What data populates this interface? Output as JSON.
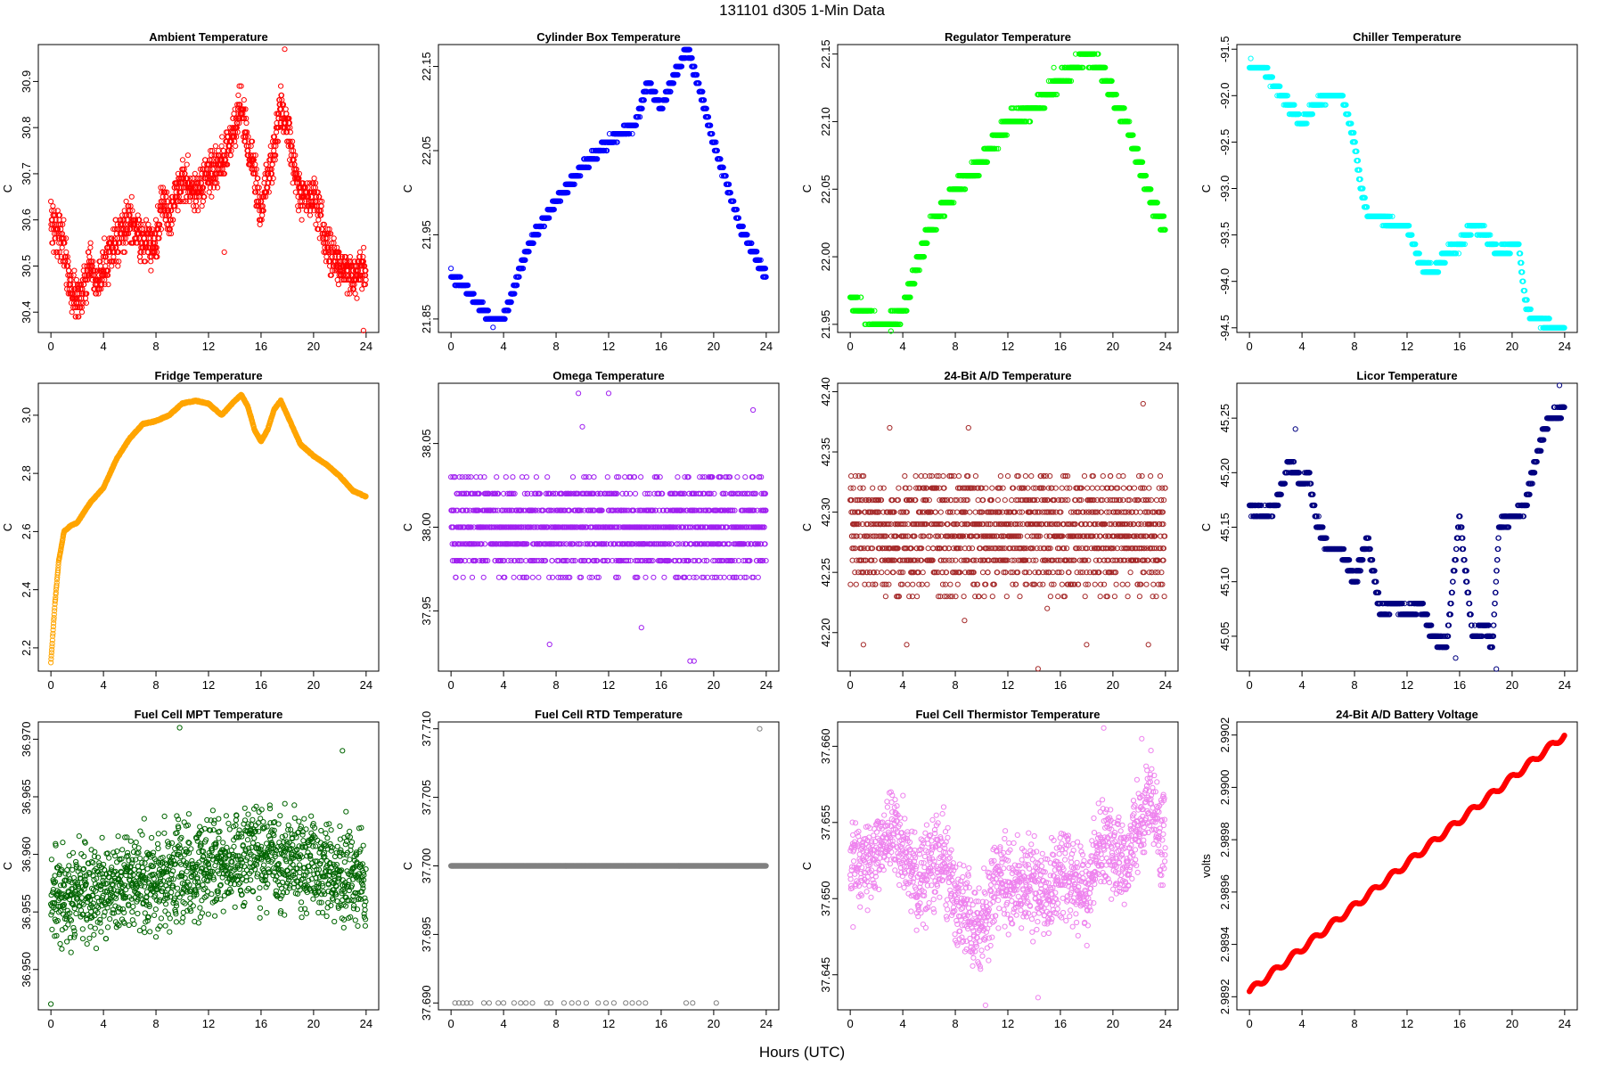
{
  "figure": {
    "title": "131101    d305    1-Min Data",
    "xlabel": "Hours (UTC)"
  },
  "chart_data": [
    {
      "id": "ambient",
      "type": "scatter",
      "title": "Ambient Temperature",
      "ylabel": "C",
      "color": "#ff0000",
      "xlim": [
        -0.96,
        24.96
      ],
      "ylim": [
        30.356,
        30.98
      ],
      "xticks": [
        0,
        4,
        8,
        12,
        16,
        20,
        24
      ],
      "yticks": [
        30.4,
        30.5,
        30.6,
        30.7,
        30.8,
        30.9
      ],
      "ytick_labels": [
        "30.4",
        "30.5",
        "30.6",
        "30.7",
        "30.8",
        "30.9"
      ],
      "gen": "noise",
      "noise": 0.04,
      "step": 0.01,
      "x": [
        0,
        1,
        1.5,
        2,
        2.5,
        3,
        3.5,
        4,
        5,
        6,
        7,
        8,
        8.5,
        9,
        10,
        11,
        12,
        13,
        14,
        14.5,
        15,
        15.5,
        16,
        17,
        17.5,
        18,
        19,
        20,
        21,
        22,
        23,
        24
      ],
      "y": [
        30.6,
        30.55,
        30.45,
        30.42,
        30.45,
        30.5,
        30.45,
        30.5,
        30.55,
        30.6,
        30.55,
        30.55,
        30.65,
        30.6,
        30.7,
        30.65,
        30.7,
        30.72,
        30.8,
        30.85,
        30.75,
        30.7,
        30.62,
        30.75,
        30.85,
        30.8,
        30.65,
        30.65,
        30.55,
        30.5,
        30.48,
        30.5
      ],
      "anomalies": [
        [
          23.8,
          30.36
        ],
        [
          17.8,
          30.97
        ],
        [
          13.2,
          30.53
        ]
      ]
    },
    {
      "id": "cylinder",
      "type": "scatter",
      "title": "Cylinder Box Temperature",
      "ylabel": "C",
      "color": "#0000ff",
      "xlim": [
        -0.96,
        24.96
      ],
      "ylim": [
        21.834,
        22.176
      ],
      "xticks": [
        0,
        4,
        8,
        12,
        16,
        20,
        24
      ],
      "yticks": [
        21.85,
        21.95,
        22.05,
        22.15
      ],
      "ytick_labels": [
        "21.85",
        "21.95",
        "22.05",
        "22.15"
      ],
      "gen": "step",
      "step": 0.01,
      "x": [
        0,
        1,
        2,
        3,
        4,
        6,
        8,
        10,
        12,
        14,
        15,
        16,
        17,
        18,
        19,
        20,
        21,
        22,
        23,
        24
      ],
      "y": [
        21.9,
        21.89,
        21.87,
        21.85,
        21.85,
        21.94,
        21.99,
        22.03,
        22.06,
        22.08,
        22.13,
        22.1,
        22.14,
        22.17,
        22.12,
        22.06,
        22.01,
        21.96,
        21.93,
        21.9
      ],
      "anomalies": [
        [
          3.2,
          21.84
        ],
        [
          0,
          21.91
        ]
      ]
    },
    {
      "id": "regulator",
      "type": "scatter",
      "title": "Regulator Temperature",
      "ylabel": "C",
      "color": "#00ff00",
      "xlim": [
        -0.96,
        24.96
      ],
      "ylim": [
        21.944,
        22.157
      ],
      "xticks": [
        0,
        4,
        8,
        12,
        16,
        20,
        24
      ],
      "yticks": [
        21.95,
        22.0,
        22.05,
        22.1,
        22.15
      ],
      "ytick_labels": [
        "21.95",
        "22.00",
        "22.05",
        "22.10",
        "22.15"
      ],
      "gen": "step",
      "step": 0.01,
      "x": [
        0,
        1,
        2,
        3,
        4,
        6,
        8,
        10,
        12,
        14,
        15,
        16,
        17,
        18,
        19,
        20,
        21,
        22,
        23,
        24
      ],
      "y": [
        21.97,
        21.96,
        21.95,
        21.95,
        21.96,
        22.02,
        22.05,
        22.07,
        22.1,
        22.11,
        22.12,
        22.13,
        22.14,
        22.15,
        22.14,
        22.12,
        22.1,
        22.07,
        22.04,
        22.02
      ],
      "anomalies": [
        [
          3.1,
          21.945
        ],
        [
          15.5,
          22.14
        ]
      ]
    },
    {
      "id": "chiller",
      "type": "scatter",
      "title": "Chiller Temperature",
      "ylabel": "C",
      "color": "#00ffff",
      "xlim": [
        -0.96,
        24.96
      ],
      "ylim": [
        -94.55,
        -91.45
      ],
      "xticks": [
        0,
        4,
        8,
        12,
        16,
        20,
        24
      ],
      "yticks": [
        -94.5,
        -94.0,
        -93.5,
        -93.0,
        -92.5,
        -92.0,
        -91.5
      ],
      "ytick_labels": [
        "-94.5",
        "-94.0",
        "-93.5",
        "-93.0",
        "-92.5",
        "-92.0",
        "-91.5"
      ],
      "gen": "step",
      "step": 0.1,
      "x": [
        0,
        1,
        2,
        3,
        4,
        5,
        6,
        7,
        8,
        8.5,
        9,
        10,
        11,
        12,
        13,
        14,
        15,
        16,
        17,
        18,
        19,
        20,
        20.5,
        21,
        21.5,
        22,
        23,
        24
      ],
      "y": [
        -91.7,
        -91.7,
        -91.9,
        -92.1,
        -92.3,
        -92.1,
        -92.0,
        -92.0,
        -92.5,
        -93.0,
        -93.3,
        -93.3,
        -93.4,
        -93.4,
        -93.8,
        -93.9,
        -93.7,
        -93.6,
        -93.4,
        -93.5,
        -93.7,
        -93.6,
        -93.6,
        -94.2,
        -94.4,
        -94.4,
        -94.5,
        -94.5
      ],
      "anomalies": [
        [
          0.1,
          -91.6
        ]
      ]
    },
    {
      "id": "fridge",
      "type": "scatter",
      "title": "Fridge Temperature",
      "ylabel": "C",
      "color": "#ffa500",
      "xlim": [
        -0.96,
        24.96
      ],
      "ylim": [
        2.12,
        3.11
      ],
      "xticks": [
        0,
        4,
        8,
        12,
        16,
        20,
        24
      ],
      "yticks": [
        2.2,
        2.4,
        2.6,
        2.8,
        3.0
      ],
      "ytick_labels": [
        "2.2",
        "2.4",
        "2.6",
        "2.8",
        "3.0"
      ],
      "gen": "smooth",
      "noise": 0.004,
      "x": [
        0,
        0.3,
        0.6,
        1,
        1.5,
        2,
        3,
        4,
        5,
        6,
        7,
        8,
        9,
        10,
        11,
        12,
        13,
        14,
        14.5,
        15,
        15.5,
        16,
        16.5,
        17,
        17.5,
        18,
        19,
        20,
        21,
        22,
        23,
        24
      ],
      "y": [
        2.15,
        2.35,
        2.5,
        2.6,
        2.62,
        2.63,
        2.7,
        2.75,
        2.85,
        2.92,
        2.97,
        2.98,
        3.0,
        3.04,
        3.05,
        3.04,
        3.0,
        3.05,
        3.07,
        3.03,
        2.95,
        2.91,
        2.95,
        3.02,
        3.05,
        3.0,
        2.9,
        2.86,
        2.83,
        2.79,
        2.74,
        2.72
      ]
    },
    {
      "id": "omega",
      "type": "scatter",
      "title": "Omega Temperature",
      "ylabel": "C",
      "color": "#a020f0",
      "xlim": [
        -0.96,
        24.96
      ],
      "ylim": [
        37.914,
        38.086
      ],
      "xticks": [
        0,
        4,
        8,
        12,
        16,
        20,
        24
      ],
      "yticks": [
        37.95,
        38.0,
        38.05
      ],
      "ytick_labels": [
        "37.95",
        "38.00",
        "38.05"
      ],
      "gen": "discrete",
      "levels": [
        37.97,
        37.98,
        37.99,
        38.0,
        38.01,
        38.02,
        38.03
      ],
      "weights": [
        1,
        3,
        5,
        6,
        5,
        3,
        1
      ],
      "x": [
        0,
        24
      ],
      "y": [
        38.0,
        38.0
      ],
      "anomalies": [
        [
          7.5,
          37.93
        ],
        [
          9.7,
          38.08
        ],
        [
          12,
          38.08
        ],
        [
          18.2,
          37.92
        ],
        [
          18.5,
          37.92
        ],
        [
          23,
          38.07
        ],
        [
          10,
          38.06
        ],
        [
          14.5,
          37.94
        ]
      ]
    },
    {
      "id": "adtemp",
      "type": "scatter",
      "title": "24-Bit A/D Temperature",
      "ylabel": "C",
      "color": "#a52a2a",
      "xlim": [
        -0.96,
        24.96
      ],
      "ylim": [
        42.168,
        42.407
      ],
      "xticks": [
        0,
        4,
        8,
        12,
        16,
        20,
        24
      ],
      "yticks": [
        42.2,
        42.25,
        42.3,
        42.35,
        42.4
      ],
      "ytick_labels": [
        "42.20",
        "42.25",
        "42.30",
        "42.35",
        "42.40"
      ],
      "gen": "discrete",
      "levels": [
        42.23,
        42.24,
        42.25,
        42.26,
        42.27,
        42.28,
        42.29,
        42.3,
        42.31,
        42.32,
        42.33
      ],
      "weights": [
        1,
        2,
        3,
        5,
        6,
        7,
        6,
        5,
        4,
        3,
        2
      ],
      "x": [
        0,
        24
      ],
      "y": [
        42.28,
        42.28
      ],
      "anomalies": [
        [
          14.3,
          42.17
        ],
        [
          22.3,
          42.39
        ],
        [
          8.7,
          42.21
        ],
        [
          1,
          42.19
        ],
        [
          4.3,
          42.19
        ],
        [
          18,
          42.19
        ],
        [
          22.7,
          42.19
        ],
        [
          15,
          42.22
        ],
        [
          3,
          42.37
        ],
        [
          9,
          42.37
        ]
      ]
    },
    {
      "id": "licor",
      "type": "scatter",
      "title": "Licor Temperature",
      "ylabel": "C",
      "color": "#000080",
      "xlim": [
        -0.96,
        24.96
      ],
      "ylim": [
        45.018,
        45.282
      ],
      "xticks": [
        0,
        4,
        8,
        12,
        16,
        20,
        24
      ],
      "yticks": [
        45.05,
        45.1,
        45.15,
        45.2,
        45.25
      ],
      "ytick_labels": [
        "45.05",
        "45.10",
        "45.15",
        "45.20",
        "45.25"
      ],
      "gen": "step",
      "step": 0.01,
      "x": [
        0,
        1,
        2,
        3,
        3.5,
        4,
        4.5,
        5,
        6,
        7,
        8,
        9,
        10,
        11,
        12,
        13,
        14,
        15,
        15.5,
        16,
        17,
        18,
        18.5,
        19,
        20,
        21,
        22,
        22.5,
        23,
        24
      ],
      "y": [
        45.17,
        45.16,
        45.17,
        45.21,
        45.2,
        45.19,
        45.2,
        45.16,
        45.13,
        45.13,
        45.1,
        45.14,
        45.07,
        45.08,
        45.07,
        45.08,
        45.05,
        45.04,
        45.1,
        45.16,
        45.05,
        45.06,
        45.04,
        45.15,
        45.16,
        45.17,
        45.22,
        45.24,
        45.25,
        45.26
      ],
      "anomalies": [
        [
          18.8,
          45.02
        ],
        [
          23.6,
          45.28
        ],
        [
          3.5,
          45.24
        ],
        [
          15.7,
          45.03
        ]
      ]
    },
    {
      "id": "fcmpt",
      "type": "scatter",
      "title": "Fuel Cell MPT Temperature",
      "ylabel": "C",
      "color": "#006400",
      "xlim": [
        -0.96,
        24.96
      ],
      "ylim": [
        36.9465,
        36.9715
      ],
      "xticks": [
        0,
        4,
        8,
        12,
        16,
        20,
        24
      ],
      "yticks": [
        36.95,
        36.955,
        36.96,
        36.965,
        36.97
      ],
      "ytick_labels": [
        "36.950",
        "36.955",
        "36.960",
        "36.965",
        "36.970"
      ],
      "gen": "noise",
      "noise": 0.0035,
      "step": 0,
      "x": [
        0,
        4,
        8,
        12,
        16,
        20,
        24
      ],
      "y": [
        36.956,
        36.957,
        36.958,
        36.959,
        36.96,
        36.959,
        36.958
      ],
      "anomalies": [
        [
          0,
          36.947
        ],
        [
          9.8,
          36.971
        ],
        [
          22.2,
          36.969
        ]
      ]
    },
    {
      "id": "fcrtd",
      "type": "scatter",
      "title": "Fuel Cell RTD Temperature",
      "ylabel": "C",
      "color": "#808080",
      "xlim": [
        -0.96,
        24.96
      ],
      "ylim": [
        37.6895,
        37.7105
      ],
      "xticks": [
        0,
        4,
        8,
        12,
        16,
        20,
        24
      ],
      "yticks": [
        37.69,
        37.695,
        37.7,
        37.705,
        37.71
      ],
      "ytick_labels": [
        "37.690",
        "37.695",
        "37.700",
        "37.705",
        "37.710"
      ],
      "gen": "flat",
      "x": [
        0,
        24
      ],
      "y": [
        37.7,
        37.7
      ],
      "anomalies": [
        [
          0.3,
          37.69
        ],
        [
          0.6,
          37.69
        ],
        [
          0.9,
          37.69
        ],
        [
          1.2,
          37.69
        ],
        [
          1.5,
          37.69
        ],
        [
          2.5,
          37.69
        ],
        [
          2.9,
          37.69
        ],
        [
          3.6,
          37.69
        ],
        [
          4,
          37.69
        ],
        [
          4.8,
          37.69
        ],
        [
          5.3,
          37.69
        ],
        [
          5.7,
          37.69
        ],
        [
          6.2,
          37.69
        ],
        [
          7.3,
          37.69
        ],
        [
          7.6,
          37.69
        ],
        [
          8.6,
          37.69
        ],
        [
          9.2,
          37.69
        ],
        [
          9.7,
          37.69
        ],
        [
          10.3,
          37.69
        ],
        [
          11.2,
          37.69
        ],
        [
          11.8,
          37.69
        ],
        [
          12.4,
          37.69
        ],
        [
          13.3,
          37.69
        ],
        [
          13.8,
          37.69
        ],
        [
          14.3,
          37.69
        ],
        [
          14.8,
          37.69
        ],
        [
          17.9,
          37.69
        ],
        [
          18.4,
          37.69
        ],
        [
          20.2,
          37.69
        ],
        [
          23.5,
          37.71
        ]
      ]
    },
    {
      "id": "fcthermistor",
      "type": "scatter",
      "title": "Fuel Cell Thermistor Temperature",
      "ylabel": "C",
      "color": "#ee82ee",
      "xlim": [
        -0.96,
        24.96
      ],
      "ylim": [
        37.6427,
        37.6616
      ],
      "xticks": [
        0,
        4,
        8,
        12,
        16,
        20,
        24
      ],
      "yticks": [
        37.645,
        37.65,
        37.655,
        37.66
      ],
      "ytick_labels": [
        "37.645",
        "37.650",
        "37.655",
        "37.660"
      ],
      "gen": "noise",
      "noise": 0.0025,
      "step": 0,
      "x": [
        0,
        2,
        3.5,
        5,
        7,
        8,
        10,
        11,
        12.5,
        14,
        15,
        16,
        17,
        18,
        19,
        20,
        21,
        22,
        23,
        24
      ],
      "y": [
        37.652,
        37.653,
        37.655,
        37.651,
        37.653,
        37.65,
        37.648,
        37.651,
        37.651,
        37.651,
        37.65,
        37.652,
        37.651,
        37.65,
        37.654,
        37.653,
        37.652,
        37.655,
        37.656,
        37.653
      ],
      "anomalies": [
        [
          10.3,
          37.643
        ],
        [
          14.3,
          37.6435
        ],
        [
          19.3,
          37.6612
        ],
        [
          22.2,
          37.6605
        ]
      ]
    },
    {
      "id": "battery",
      "type": "scatter",
      "title": "24-Bit A/D Battery Voltage",
      "ylabel": "volts",
      "color": "#ff0000",
      "xlim": [
        -0.96,
        24.96
      ],
      "ylim": [
        2.98915,
        2.99025
      ],
      "xticks": [
        0,
        4,
        8,
        12,
        16,
        20,
        24
      ],
      "yticks": [
        2.9892,
        2.9894,
        2.9896,
        2.9898,
        2.99,
        2.9902
      ],
      "ytick_labels": [
        "2.9892",
        "2.9894",
        "2.9896",
        "2.9898",
        "2.9900",
        "2.9902"
      ],
      "gen": "wave",
      "x": [
        0,
        24
      ],
      "y": [
        2.98922,
        2.9902
      ]
    }
  ]
}
